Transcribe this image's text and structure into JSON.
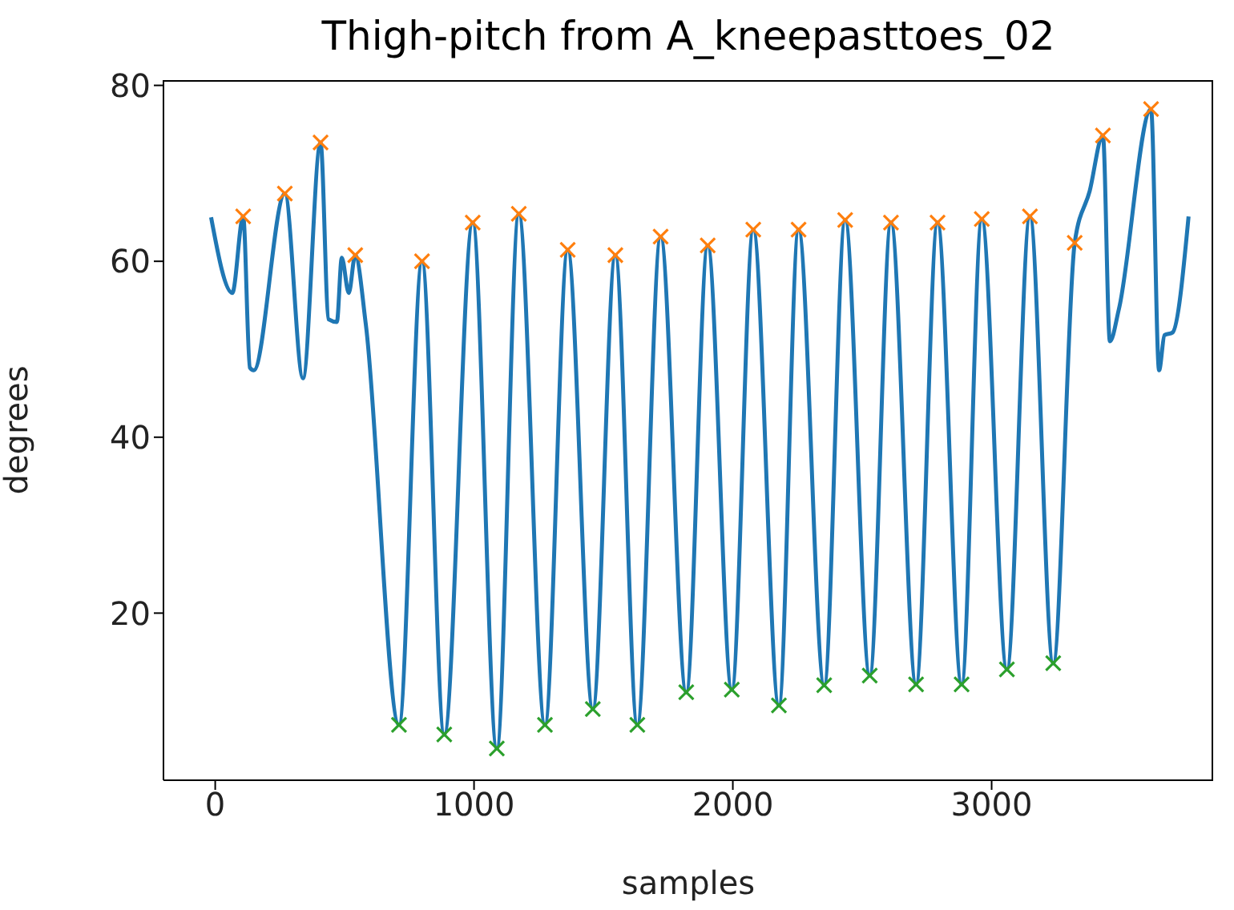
{
  "chart_data": {
    "type": "line",
    "title": "Thigh-pitch from A_kneepasttoes_02",
    "xlabel": "samples",
    "ylabel": "degrees",
    "xlim": [
      -200,
      3856
    ],
    "xticks": [
      0,
      1000,
      2000,
      3000
    ],
    "ylim": [
      1,
      80.6
    ],
    "yticks": [
      20,
      40,
      60,
      80
    ],
    "grid": false,
    "legend": false,
    "series": [
      {
        "color": "#1f77b4",
        "marker": "none",
        "x": [
          -16,
          66,
          108,
          134,
          149,
          269,
          339,
          407,
          438,
          470,
          489,
          516,
          541,
          582,
          710,
          799,
          885,
          995,
          1088,
          1173,
          1274,
          1362,
          1459,
          1546,
          1631,
          1721,
          1820,
          1903,
          1996,
          2079,
          2178,
          2254,
          2353,
          2434,
          2529,
          2611,
          2708,
          2791,
          2884,
          2962,
          3059,
          3148,
          3238,
          3321,
          3379,
          3430,
          3457,
          3492,
          3616,
          3647,
          3668,
          3699,
          3761
        ],
        "values": [
          65.0,
          56.4,
          65.1,
          47.9,
          47.6,
          67.7,
          46.7,
          73.5,
          53.4,
          53.1,
          60.4,
          56.4,
          60.7,
          52.8,
          7.3,
          60.0,
          6.2,
          64.4,
          4.6,
          65.4,
          7.3,
          61.3,
          9.1,
          60.7,
          7.3,
          62.8,
          11.0,
          61.8,
          11.3,
          63.6,
          9.5,
          63.6,
          11.8,
          64.7,
          12.9,
          64.4,
          11.9,
          64.4,
          11.9,
          64.8,
          13.6,
          65.1,
          14.3,
          62.1,
          68.0,
          74.3,
          50.9,
          54.6,
          77.3,
          47.6,
          51.6,
          51.9,
          65.1
        ]
      },
      {
        "type": "scatter",
        "color": "#ff7f0e",
        "marker": "cross",
        "x": [
          108,
          269,
          407,
          541,
          799,
          995,
          1173,
          1362,
          1546,
          1721,
          1903,
          2079,
          2254,
          2434,
          2611,
          2791,
          2962,
          3148,
          3321,
          3430,
          3616
        ],
        "values": [
          65.1,
          67.7,
          73.5,
          60.7,
          60.0,
          64.4,
          65.4,
          61.3,
          60.7,
          62.8,
          61.8,
          63.6,
          63.6,
          64.7,
          64.4,
          64.4,
          64.8,
          65.1,
          62.1,
          74.3,
          77.3
        ]
      },
      {
        "type": "scatter",
        "color": "#2ca02c",
        "marker": "cross",
        "x": [
          710,
          885,
          1088,
          1274,
          1459,
          1631,
          1820,
          1996,
          2178,
          2353,
          2529,
          2708,
          2884,
          3059,
          3238
        ],
        "values": [
          7.3,
          6.2,
          4.6,
          7.3,
          9.1,
          7.3,
          11.0,
          11.3,
          9.5,
          11.8,
          12.9,
          11.9,
          11.9,
          13.6,
          14.3
        ]
      }
    ]
  }
}
